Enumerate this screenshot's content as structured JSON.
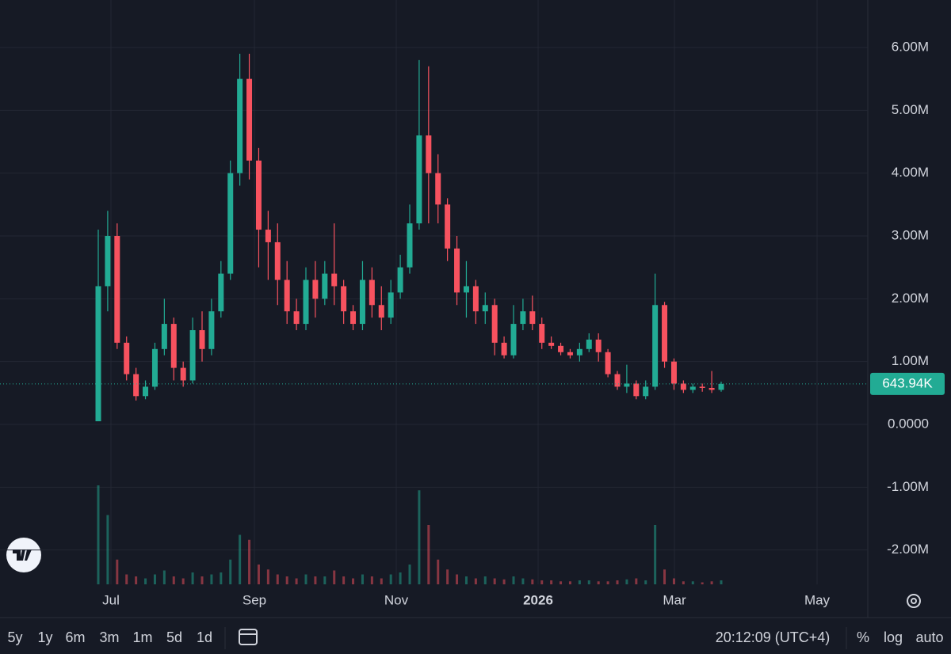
{
  "chart_data": {
    "type": "candlestick",
    "open": [
      50000,
      2200000,
      3000000,
      1300000,
      800000,
      450000,
      600000,
      1200000,
      1600000,
      900000,
      700000,
      1500000,
      1200000,
      1800000,
      2400000,
      4000000,
      5500000,
      4200000,
      3100000,
      2900000,
      2300000,
      1800000,
      1600000,
      2300000,
      2000000,
      2400000,
      2200000,
      1800000,
      1600000,
      2300000,
      1900000,
      1700000,
      2100000,
      2500000,
      3200000,
      4600000,
      4000000,
      3500000,
      2800000,
      2100000,
      2200000,
      1800000,
      1900000,
      1300000,
      1100000,
      1600000,
      1800000,
      1600000,
      1300000,
      1250000,
      1150000,
      1100000,
      1200000,
      1350000,
      1150000,
      800000,
      600000,
      650000,
      450000,
      600000,
      1900000,
      1000000,
      650000,
      550000,
      600000,
      580000,
      550000
    ],
    "high": [
      3100000,
      3400000,
      3200000,
      1400000,
      900000,
      700000,
      1300000,
      2000000,
      1700000,
      1000000,
      1700000,
      1800000,
      2000000,
      2600000,
      4200000,
      5900000,
      5900000,
      4400000,
      3400000,
      3200000,
      2600000,
      2000000,
      2500000,
      2600000,
      2600000,
      3200000,
      2300000,
      1900000,
      2600000,
      2500000,
      2200000,
      2300000,
      2700000,
      3500000,
      5800000,
      5700000,
      4300000,
      3600000,
      3000000,
      2600000,
      2300000,
      2100000,
      2000000,
      1400000,
      1900000,
      2000000,
      2050000,
      1700000,
      1400000,
      1300000,
      1200000,
      1300000,
      1450000,
      1450000,
      1200000,
      850000,
      950000,
      700000,
      700000,
      2400000,
      1950000,
      1050000,
      700000,
      650000,
      650000,
      850000,
      680000
    ],
    "low": [
      50000,
      1800000,
      1200000,
      700000,
      380000,
      400000,
      550000,
      1100000,
      700000,
      600000,
      650000,
      1000000,
      1100000,
      1700000,
      2300000,
      3800000,
      3900000,
      2500000,
      2300000,
      1900000,
      1600000,
      1500000,
      1500000,
      1700000,
      1900000,
      1900000,
      1600000,
      1500000,
      1500000,
      1700000,
      1500000,
      1600000,
      2000000,
      2400000,
      3100000,
      3200000,
      3200000,
      2600000,
      1900000,
      1700000,
      1600000,
      1600000,
      1100000,
      1050000,
      1050000,
      1500000,
      1500000,
      1200000,
      1200000,
      1100000,
      1050000,
      1000000,
      1150000,
      1000000,
      750000,
      550000,
      500000,
      400000,
      400000,
      550000,
      900000,
      550000,
      500000,
      500000,
      520000,
      500000,
      520000
    ],
    "close": [
      2200000,
      3000000,
      1300000,
      800000,
      450000,
      600000,
      1200000,
      1600000,
      900000,
      700000,
      1500000,
      1200000,
      1800000,
      2400000,
      4000000,
      5500000,
      4200000,
      3100000,
      2900000,
      2300000,
      1800000,
      1600000,
      2300000,
      2000000,
      2400000,
      2200000,
      1800000,
      1600000,
      2300000,
      1900000,
      1700000,
      2100000,
      2500000,
      3200000,
      4600000,
      4000000,
      3500000,
      2800000,
      2100000,
      2200000,
      1800000,
      1900000,
      1300000,
      1100000,
      1600000,
      1800000,
      1600000,
      1300000,
      1250000,
      1150000,
      1100000,
      1200000,
      1350000,
      1150000,
      800000,
      600000,
      650000,
      450000,
      600000,
      1900000,
      1000000,
      650000,
      550000,
      600000,
      580000,
      550000,
      643940
    ],
    "volume": [
      100,
      70,
      25,
      10,
      8,
      6,
      10,
      14,
      8,
      6,
      12,
      8,
      10,
      12,
      25,
      50,
      45,
      20,
      15,
      10,
      8,
      6,
      10,
      8,
      8,
      14,
      8,
      6,
      10,
      8,
      6,
      10,
      12,
      20,
      95,
      60,
      25,
      15,
      10,
      8,
      6,
      8,
      6,
      5,
      8,
      6,
      5,
      4,
      4,
      3,
      3,
      4,
      4,
      3,
      3,
      4,
      5,
      6,
      4,
      60,
      15,
      6,
      3,
      3,
      2,
      3,
      4
    ],
    "up_color": "#22ab94",
    "down_color": "#f7525f",
    "ylim": [
      -2546000,
      6756000
    ],
    "yticks": [
      {
        "value": 6000000,
        "label": "6.00M"
      },
      {
        "value": 5000000,
        "label": "5.00M"
      },
      {
        "value": 4000000,
        "label": "4.00M"
      },
      {
        "value": 3000000,
        "label": "3.00M"
      },
      {
        "value": 2000000,
        "label": "2.00M"
      },
      {
        "value": 1000000,
        "label": "1.00M"
      },
      {
        "value": 0,
        "label": "0.0000"
      },
      {
        "value": -1000000,
        "label": "-1.00M"
      },
      {
        "value": -2000000,
        "label": "-2.00M"
      }
    ],
    "x_labels": [
      "Jul",
      "Sep",
      "Nov",
      "2026",
      "Mar",
      "May"
    ],
    "last_price": {
      "value": 643940,
      "label": "643.94K"
    },
    "grid": true
  },
  "toolbar": {
    "ranges": [
      "5y",
      "1y",
      "6m",
      "3m",
      "1m",
      "5d",
      "1d"
    ],
    "clock": "20:12:09 (UTC+4)",
    "options": [
      "%",
      "log",
      "auto"
    ]
  }
}
